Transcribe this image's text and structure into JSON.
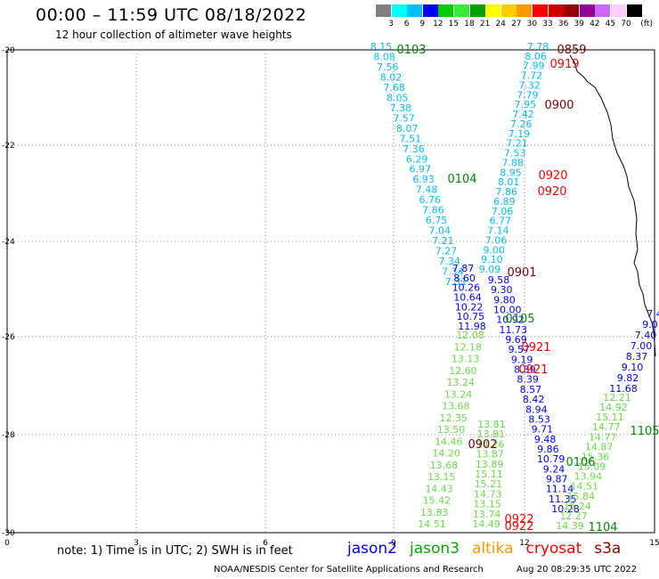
{
  "header": {
    "title": "00:00 – 11:59 UTC 08/18/2022",
    "subtitle": "12 hour collection of altimeter wave heights"
  },
  "colorbar": {
    "unit": "(ft)",
    "swatches": [
      {
        "label": "3",
        "color": "#808080"
      },
      {
        "label": "6",
        "color": "#00ffff"
      },
      {
        "label": "9",
        "color": "#00bfff"
      },
      {
        "label": "12",
        "color": "#0000ff"
      },
      {
        "label": "15",
        "color": "#00cc00"
      },
      {
        "label": "18",
        "color": "#33ee33"
      },
      {
        "label": "21",
        "color": "#00a000"
      },
      {
        "label": "24",
        "color": "#ffff00"
      },
      {
        "label": "27",
        "color": "#ffcc00"
      },
      {
        "label": "30",
        "color": "#ff9900"
      },
      {
        "label": "33",
        "color": "#ff0000"
      },
      {
        "label": "36",
        "color": "#cc0000"
      },
      {
        "label": "39",
        "color": "#990000"
      },
      {
        "label": "42",
        "color": "#990099"
      },
      {
        "label": "45",
        "color": "#cc66ff"
      },
      {
        "label": "70",
        "color": "#ffccff"
      },
      {
        "label": "",
        "color": "#000000"
      }
    ]
  },
  "axes": {
    "x_ticks": [
      "0",
      "3",
      "6",
      "9",
      "12",
      "15"
    ],
    "y_ticks": [
      "-20",
      "-22",
      "-24",
      "-26",
      "-28",
      "-30"
    ]
  },
  "tracks": [
    {
      "name": "track-0103",
      "color": "#00bfff",
      "values": [
        "8.15",
        "8.08",
        "7.56",
        "8.02",
        "7.68",
        "8.05",
        "7.38",
        "7.57",
        "8.07",
        "7.51",
        "7.36",
        "6.29",
        "6.97",
        "6.93",
        "7.48",
        "6.76",
        "7.86",
        "6.75",
        "7.04",
        "7.21",
        "7.27",
        "7.34",
        "7.34",
        "7.31"
      ]
    },
    {
      "name": "track-0104-low",
      "color": "#0000ff",
      "values": [
        "7.87",
        "8.60",
        "10.26",
        "10.64",
        "10.22",
        "10.75",
        "11.98"
      ]
    },
    {
      "name": "track-0104-green",
      "color": "#66dd44",
      "values": [
        "12.08",
        "12.18",
        "13.13",
        "12.60",
        "13.24",
        "13.24",
        "13.68",
        "12.35",
        "13.50",
        "14.46",
        "14.20",
        "13.68",
        "13.15",
        "14.43",
        "15.42",
        "13.83",
        "14.51"
      ]
    },
    {
      "name": "track-0859",
      "color": "#00bfff",
      "values": [
        "7.78",
        "8.06",
        "7.99",
        "7.72",
        "7.32",
        "7.79",
        "7.95",
        "7.42",
        "7.26",
        "7.19",
        "7.21",
        "7.53",
        "7.88",
        "8.95",
        "8.01",
        "7.86",
        "6.89",
        "7.06",
        "6.77",
        "7.14",
        "7.06",
        "9.00",
        "9.10",
        "9.09"
      ]
    },
    {
      "name": "track-0901",
      "color": "#0000ff",
      "values": [
        "9.58",
        "9.30",
        "9.80",
        "10.00",
        "10.92",
        "11.73",
        "9.69",
        "9.57",
        "9.19",
        "8.39",
        "8.39",
        "8.57",
        "8.42",
        "8.94",
        "8.53",
        "9.71",
        "9.48",
        "9.86",
        "10.79",
        "9.24",
        "9.87",
        "11.14",
        "11.35",
        "10.28"
      ]
    },
    {
      "name": "track-0902",
      "color": "#66dd44",
      "values": [
        "13.81",
        "13.81",
        "14.26",
        "13.87",
        "13.89",
        "15.11",
        "15.21",
        "14.73",
        "13.15",
        "13.74",
        "14.49"
      ]
    },
    {
      "name": "track-1105",
      "color": "#0000ff",
      "values": [
        "7.4",
        "9.0",
        "7.40",
        "7.00",
        "8.37",
        "9.10",
        "9.82",
        "11.68"
      ]
    },
    {
      "name": "track-1105-green",
      "color": "#66dd44",
      "values": [
        "12.21",
        "14.92",
        "15.11",
        "14.77",
        "14.77",
        "14.87",
        "15.36",
        "15.09",
        "13.94",
        "14.51",
        "15.84",
        "15.24",
        "12.27",
        "14.39"
      ]
    }
  ],
  "pass_labels": [
    {
      "text": "0103",
      "color": "#008800"
    },
    {
      "text": "0859",
      "color": "#800000"
    },
    {
      "text": "0919",
      "color": "#ff0000"
    },
    {
      "text": "0900",
      "color": "#800000"
    },
    {
      "text": "0920",
      "color": "#ff0000"
    },
    {
      "text": "0920",
      "color": "#ff0000"
    },
    {
      "text": "0104",
      "color": "#008800"
    },
    {
      "text": "0901",
      "color": "#800000"
    },
    {
      "text": "0105",
      "color": "#008800"
    },
    {
      "text": "0921",
      "color": "#ff0000"
    },
    {
      "text": "0921",
      "color": "#ff0000"
    },
    {
      "text": "1105",
      "color": "#008800"
    },
    {
      "text": "0902",
      "color": "#800000"
    },
    {
      "text": "0106",
      "color": "#008800"
    },
    {
      "text": "0922",
      "color": "#ff0000"
    },
    {
      "text": "0922",
      "color": "#ff0000"
    },
    {
      "text": "1104",
      "color": "#008800"
    }
  ],
  "footer": {
    "note": "note: 1) Time is in UTC; 2) SWH is in feet",
    "legend": [
      {
        "text": "jason2",
        "color": "#0000ff"
      },
      {
        "text": "jason3",
        "color": "#00aa00"
      },
      {
        "text": "altika",
        "color": "#ff9900"
      },
      {
        "text": "cryosat",
        "color": "#ff0000"
      },
      {
        "text": "s3a",
        "color": "#990000"
      }
    ],
    "credit": "NOAA/NESDIS Center for Satellite Applications and Research",
    "timestamp": "Aug 20 08:29:35 UTC 2022"
  }
}
